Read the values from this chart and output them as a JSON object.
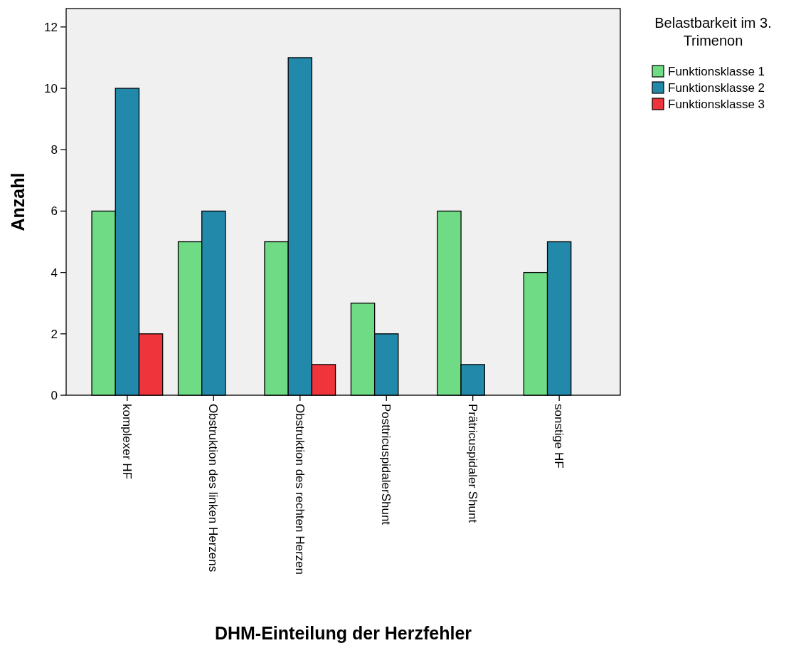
{
  "chart_data": {
    "type": "bar",
    "xlabel": "DHM-Einteilung der Herzfehler",
    "ylabel": "Anzahl",
    "legend_title": "Belastbarkeit im 3. Trimenon",
    "categories": [
      "komplexer HF",
      "Obstruktion des linken Herzens",
      "Obstruktion des rechten Herzen",
      "PosttricuspidalerShunt",
      "Prätricuspidaler Shunt",
      "sonstige HF"
    ],
    "series": [
      {
        "name": "Funktionsklasse 1",
        "color": "#6fdc85",
        "values": [
          6,
          5,
          5,
          3,
          6,
          4
        ]
      },
      {
        "name": "Funktionsklasse 2",
        "color": "#2389ab",
        "values": [
          10,
          6,
          11,
          2,
          1,
          5
        ]
      },
      {
        "name": "Funktionsklasse 3",
        "color": "#f0343c",
        "values": [
          2,
          0,
          1,
          0,
          0,
          0
        ]
      }
    ],
    "ylim": [
      0,
      12.6
    ],
    "yticks": [
      0,
      2,
      4,
      6,
      8,
      10,
      12
    ],
    "grid": false,
    "legend": "top right"
  }
}
